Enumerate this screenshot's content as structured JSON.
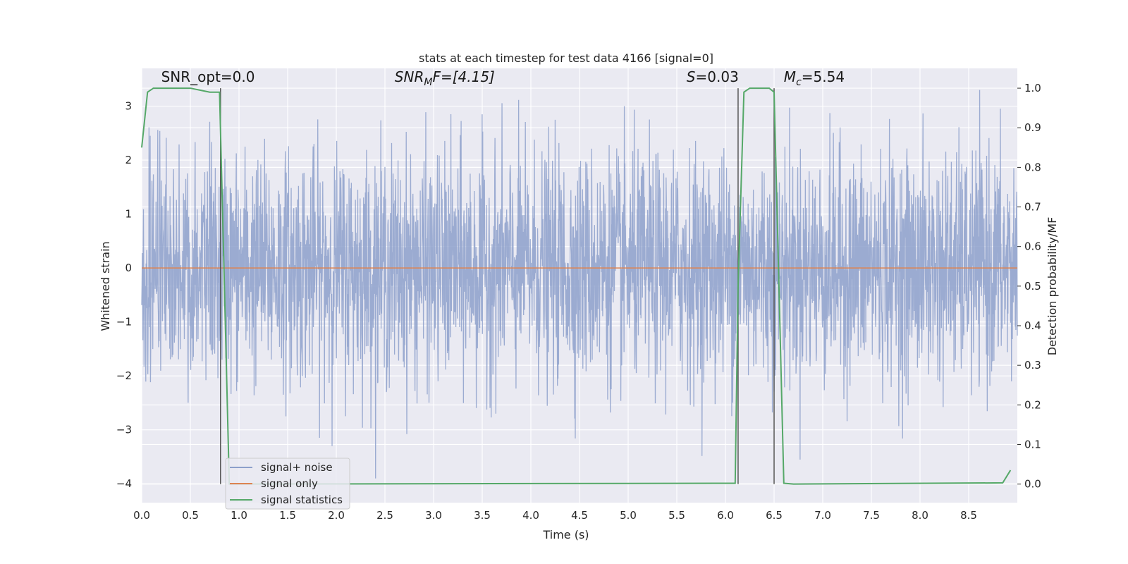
{
  "chart_data": {
    "type": "line",
    "title": "stats at each timestep for test data 4166 [signal=0]",
    "xlabel": "Time (s)",
    "ylabel": "Whitened strain",
    "y2label": "Detection probability/MF",
    "xlim": [
      0,
      9
    ],
    "ylim": [
      -4.35,
      3.7
    ],
    "y2lim": [
      -0.047,
      1.05
    ],
    "x_ticks": [
      "0.0",
      "0.5",
      "1.0",
      "1.5",
      "2.0",
      "2.5",
      "3.0",
      "3.5",
      "4.0",
      "4.5",
      "5.0",
      "5.5",
      "6.0",
      "6.5",
      "7.0",
      "7.5",
      "8.0",
      "8.5"
    ],
    "y_ticks": [
      "3",
      "2",
      "1",
      "0",
      "−1",
      "−2",
      "−3",
      "−4"
    ],
    "y2_ticks": [
      "1.0",
      "0.9",
      "0.8",
      "0.7",
      "0.6",
      "0.5",
      "0.4",
      "0.3",
      "0.2",
      "0.1",
      "0.0"
    ],
    "grid": true,
    "legend_position": "lower-left",
    "annotations": [
      {
        "text": "SNR_opt=0.0",
        "x_data": 0.2
      },
      {
        "text": "SNR",
        "sub": "M",
        "tail": "F=[4.15]",
        "italic": true,
        "x_data": 2.6
      },
      {
        "text": "S",
        "tail": "=0.03",
        "italic": true,
        "x_data": 5.6
      },
      {
        "text": "M",
        "sub": "c",
        "tail": "=5.54",
        "italic": true,
        "x_data": 6.6
      }
    ],
    "vertical_lines_x": [
      0.81,
      6.13,
      6.5
    ],
    "series": [
      {
        "name": "signal+ noise",
        "color": "#8da0cb",
        "axis": "left",
        "kind": "noise",
        "approx_range": [
          -3.9,
          3.3
        ]
      },
      {
        "name": "signal only",
        "color": "#dd8452",
        "axis": "left",
        "kind": "line",
        "x": [
          0,
          9
        ],
        "y": [
          0,
          0
        ]
      },
      {
        "name": "signal statistics",
        "color": "#55a868",
        "axis": "right",
        "kind": "line",
        "x": [
          0.0,
          0.06,
          0.12,
          0.5,
          0.7,
          0.8,
          0.85,
          0.9,
          6.1,
          6.13,
          6.19,
          6.25,
          6.45,
          6.5,
          6.55,
          6.6,
          6.7,
          8.85,
          8.93
        ],
        "y": [
          0.85,
          0.99,
          1.0,
          1.0,
          0.99,
          0.99,
          0.5,
          0.0,
          0.002,
          0.5,
          0.99,
          1.0,
          1.0,
          0.99,
          0.5,
          0.002,
          0.0,
          0.003,
          0.035
        ]
      }
    ]
  },
  "colors": {
    "plot_background": "#eaeaf2",
    "grid": "#ffffff",
    "vline": "#555555"
  }
}
